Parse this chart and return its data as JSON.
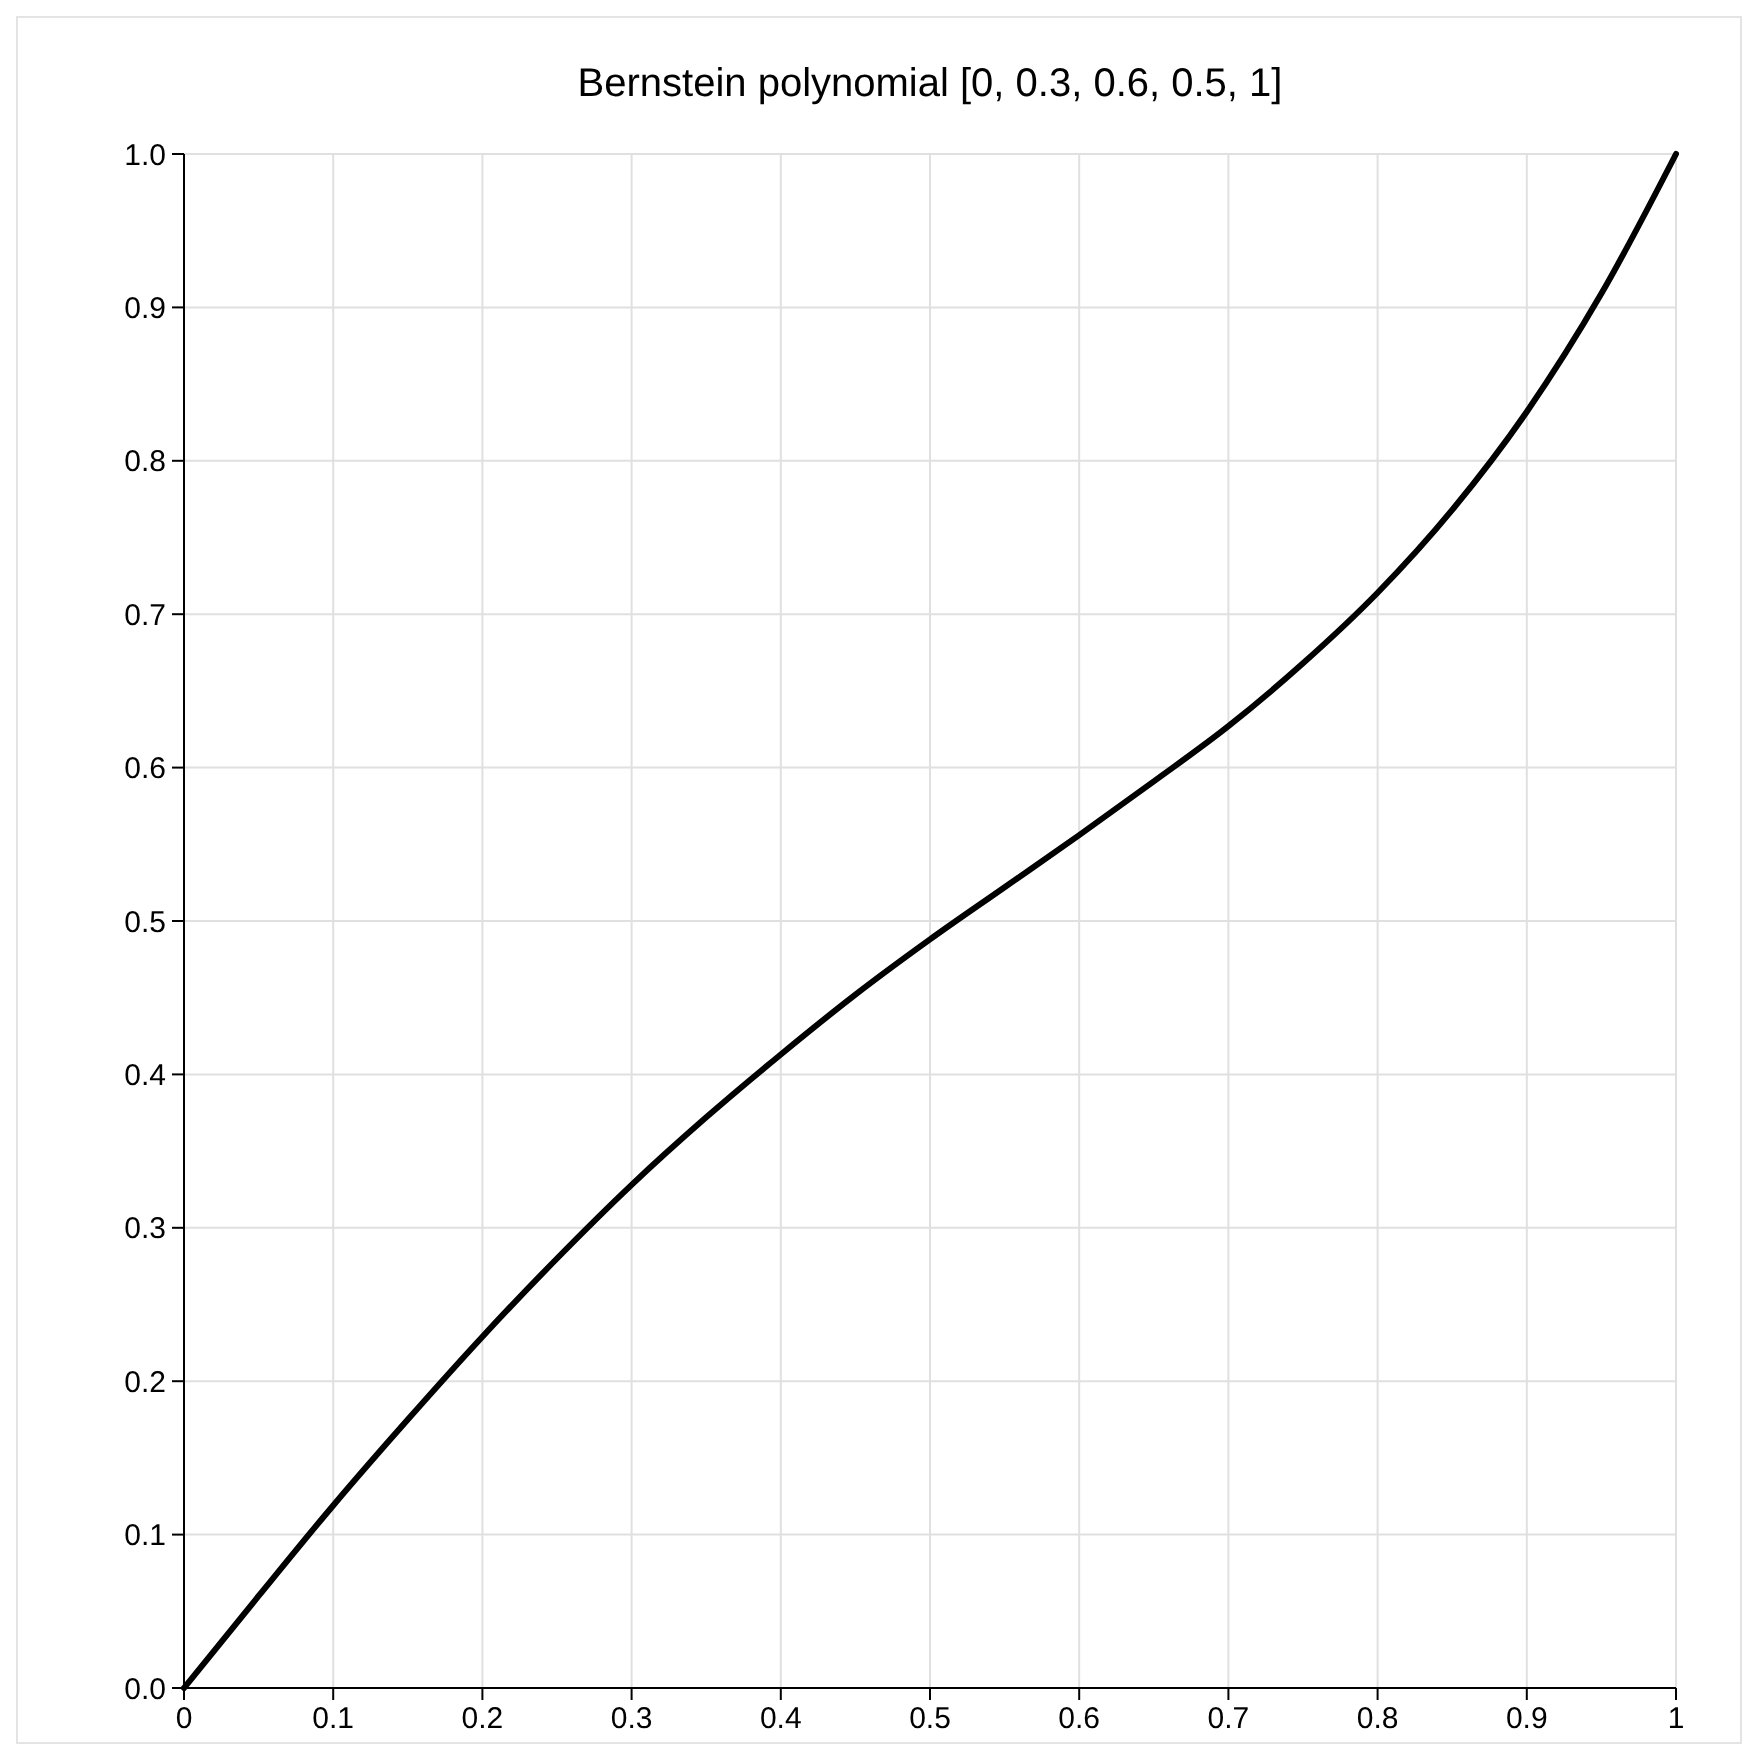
{
  "chart_data": {
    "type": "line",
    "title": "Bernstein polynomial [0, 0.3, 0.6, 0.5, 1]",
    "x": [
      0,
      0.05,
      0.1,
      0.15,
      0.2,
      0.25,
      0.3,
      0.35,
      0.4,
      0.45,
      0.5,
      0.55,
      0.6,
      0.65,
      0.7,
      0.75,
      0.8,
      0.85,
      0.9,
      0.95,
      1
    ],
    "series": [
      {
        "color": "#000000",
        "values": [
          0,
          0.06,
          0.119,
          0.175,
          0.229,
          0.28,
          0.328,
          0.372,
          0.413,
          0.452,
          0.488,
          0.522,
          0.556,
          0.591,
          0.627,
          0.668,
          0.714,
          0.768,
          0.832,
          0.909,
          1
        ]
      }
    ],
    "xlim": [
      0,
      1
    ],
    "ylim": [
      0,
      1
    ],
    "xticks": [
      0,
      0.1,
      0.2,
      0.3,
      0.4,
      0.5,
      0.6,
      0.7,
      0.8,
      0.9,
      1
    ],
    "yticks": [
      {
        "value": 0,
        "label": "0.0"
      },
      0.1,
      0.2,
      0.3,
      0.4,
      0.5,
      0.6,
      0.7,
      0.8,
      0.9,
      {
        "value": 1,
        "label": "1.0"
      }
    ],
    "grid": true,
    "marker": "none",
    "line_style": "solid"
  }
}
